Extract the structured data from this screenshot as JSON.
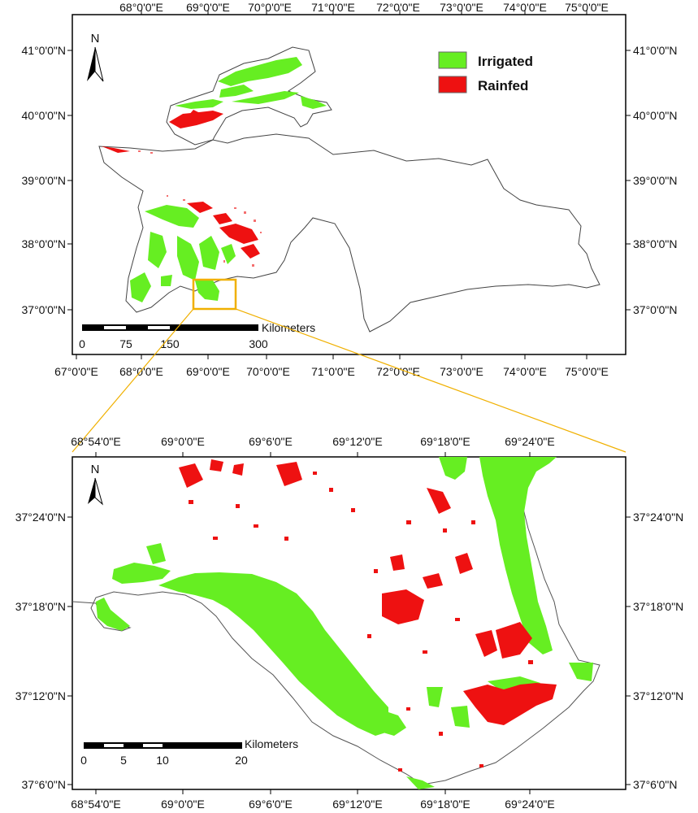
{
  "colors": {
    "irrigated": "#66ee22",
    "rainfed": "#ee1111",
    "highlight": "#f0b000",
    "border": "#444444"
  },
  "top_map": {
    "lon_labels": [
      "67°0'0\"E",
      "68°0'0\"E",
      "69°0'0\"E",
      "70°0'0\"E",
      "71°0'0\"E",
      "72°0'0\"E",
      "73°0'0\"E",
      "74°0'0\"E",
      "75°0'0\"E"
    ],
    "top_lon_labels": [
      "68°0'0\"E",
      "69°0'0\"E",
      "70°0'0\"E",
      "71°0'0\"E",
      "72°0'0\"E",
      "73°0'0\"E",
      "74°0'0\"E",
      "75°0'0\"E"
    ],
    "lat_labels": [
      "41°0'0\"N",
      "40°0'0\"N",
      "39°0'0\"N",
      "38°0'0\"N",
      "37°0'0\"N"
    ],
    "north": "N",
    "legend": [
      {
        "label": "Irrigated",
        "color_key": "irrigated"
      },
      {
        "label": "Rainfed",
        "color_key": "rainfed"
      }
    ],
    "scale": {
      "unit": "Kilometers",
      "ticks": [
        "0",
        "75",
        "150",
        "300"
      ]
    }
  },
  "bottom_map": {
    "lon_labels": [
      "68°54'0\"E",
      "69°0'0\"E",
      "69°6'0\"E",
      "69°12'0\"E",
      "69°18'0\"E",
      "69°24'0\"E"
    ],
    "lat_labels": [
      "37°24'0\"N",
      "37°18'0\"N",
      "37°12'0\"N",
      "37°6'0\"N"
    ],
    "north": "N",
    "scale": {
      "unit": "Kilometers",
      "ticks": [
        "0",
        "5",
        "10",
        "20"
      ]
    }
  }
}
